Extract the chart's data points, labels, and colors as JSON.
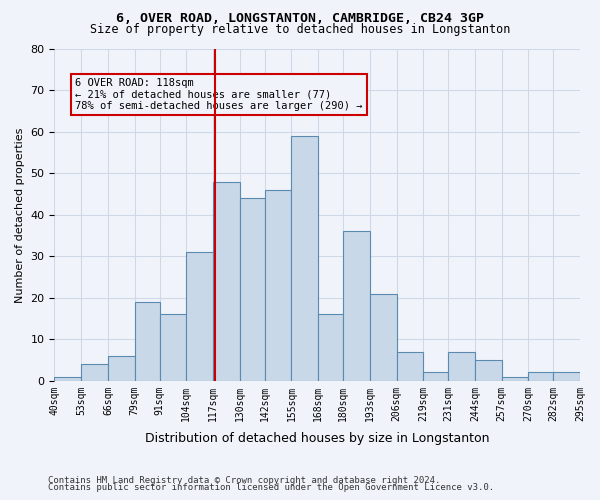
{
  "title1": "6, OVER ROAD, LONGSTANTON, CAMBRIDGE, CB24 3GP",
  "title2": "Size of property relative to detached houses in Longstanton",
  "xlabel": "Distribution of detached houses by size in Longstanton",
  "ylabel": "Number of detached properties",
  "footnote1": "Contains HM Land Registry data © Crown copyright and database right 2024.",
  "footnote2": "Contains public sector information licensed under the Open Government Licence v3.0.",
  "bin_labels": [
    "40sqm",
    "53sqm",
    "66sqm",
    "79sqm",
    "91sqm",
    "104sqm",
    "117sqm",
    "130sqm",
    "142sqm",
    "155sqm",
    "168sqm",
    "180sqm",
    "193sqm",
    "206sqm",
    "219sqm",
    "231sqm",
    "244sqm",
    "257sqm",
    "270sqm",
    "282sqm",
    "295sqm"
  ],
  "bin_edges": [
    40,
    53,
    66,
    79,
    91,
    104,
    117,
    130,
    142,
    155,
    168,
    180,
    193,
    206,
    219,
    231,
    244,
    257,
    270,
    282,
    295
  ],
  "bar_heights": [
    1,
    4,
    6,
    19,
    16,
    31,
    48,
    44,
    46,
    59,
    16,
    36,
    21,
    7,
    2,
    7,
    5,
    1,
    2,
    2
  ],
  "bar_color": "#c8d8e8",
  "bar_edge_color": "#5a8ab0",
  "vline_x": 118,
  "vline_color": "#cc0000",
  "annotation_text": "6 OVER ROAD: 118sqm\n← 21% of detached houses are smaller (77)\n78% of semi-detached houses are larger (290) →",
  "annotation_box_edge": "#cc0000",
  "ylim": [
    0,
    80
  ],
  "yticks": [
    0,
    10,
    20,
    30,
    40,
    50,
    60,
    70,
    80
  ],
  "grid_color": "#d0d8e8",
  "background_color": "#f0f4fa"
}
